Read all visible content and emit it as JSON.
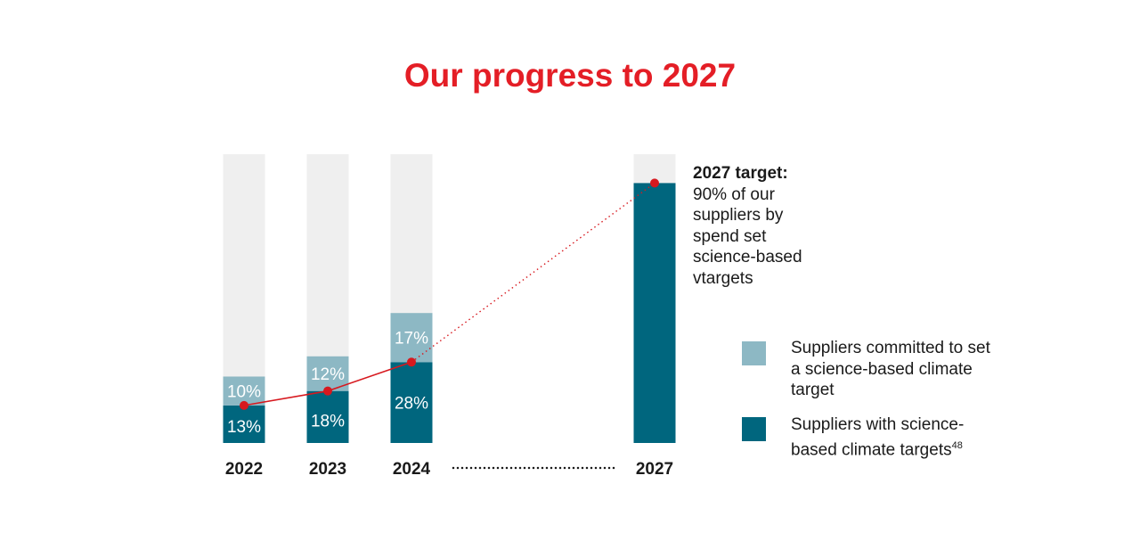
{
  "title": "Our progress to 2027",
  "colors": {
    "accent": "#e41e26",
    "committed": "#8db8c4",
    "science_based": "#00667e",
    "background_bar": "#efefef",
    "trend": "#d7191f"
  },
  "target_note": {
    "heading": "2027 target:",
    "text": "90% of our suppliers by spend set science-based vtargets"
  },
  "legend": [
    {
      "label": "Suppliers committed to set a science-based climate target",
      "sup": ""
    },
    {
      "label": "Suppliers with science-based climate targets",
      "sup": "48"
    }
  ],
  "chart_data": {
    "type": "bar",
    "stacked": true,
    "categories": [
      "2022",
      "2023",
      "2024",
      "2027"
    ],
    "ylim": [
      0,
      100
    ],
    "series": [
      {
        "name": "Suppliers with science-based climate targets",
        "values": [
          13,
          18,
          28,
          90
        ],
        "labels": [
          "13%",
          "18%",
          "28%",
          ""
        ]
      },
      {
        "name": "Suppliers committed to set a science-based climate target",
        "values": [
          10,
          12,
          17,
          0
        ],
        "labels": [
          "10%",
          "12%",
          "17%",
          ""
        ]
      }
    ],
    "trend_line": {
      "values": [
        13,
        18,
        28,
        90
      ]
    },
    "legend_position": "right",
    "grid": false
  }
}
